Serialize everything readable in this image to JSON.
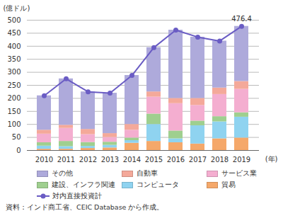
{
  "chart_data": {
    "type": "bar",
    "stacked": true,
    "y_label": "(億ドル)",
    "x_label": "(年)",
    "source": "資料：インド商工省、CEIC Database から作成。",
    "x": [
      2010,
      2011,
      2012,
      2013,
      2014,
      2015,
      2016,
      2017,
      2018,
      2019
    ],
    "ylim": [
      0,
      500
    ],
    "yticks": [
      0,
      50,
      100,
      150,
      200,
      250,
      300,
      350,
      400,
      450,
      500
    ],
    "grid": true,
    "legend": "bottom",
    "series": [
      {
        "name": "貿易",
        "color": "#f5a86a",
        "values": [
          5,
          5,
          8,
          10,
          28,
          35,
          30,
          25,
          45,
          48
        ]
      },
      {
        "name": "コンピュータ",
        "color": "#8fd3f0",
        "values": [
          12,
          10,
          8,
          10,
          10,
          65,
          15,
          70,
          65,
          80
        ]
      },
      {
        "name": "建設、インフラ関連",
        "color": "#9fcf8f",
        "values": [
          13,
          20,
          15,
          12,
          10,
          40,
          30,
          18,
          20,
          17
        ]
      },
      {
        "name": "サービス業",
        "color": "#f4aed0",
        "values": [
          33,
          50,
          30,
          18,
          30,
          65,
          105,
          60,
          85,
          90
        ]
      },
      {
        "name": "自動車",
        "color": "#f4a99a",
        "values": [
          15,
          12,
          20,
          15,
          22,
          20,
          20,
          27,
          25,
          30
        ]
      },
      {
        "name": "その他",
        "color": "#aeaadb",
        "values": [
          132,
          178,
          144,
          155,
          188,
          170,
          262,
          235,
          180,
          211.4
        ]
      },
      {
        "name": "対内直接投資計",
        "type": "line",
        "marker": "circle",
        "color": "#6a5cc4",
        "values": [
          210,
          275,
          225,
          220,
          288,
          395,
          462,
          435,
          420,
          476.4
        ]
      }
    ],
    "annotations": [
      {
        "x": 2019,
        "y": 476.4,
        "text": "476.4"
      }
    ]
  }
}
